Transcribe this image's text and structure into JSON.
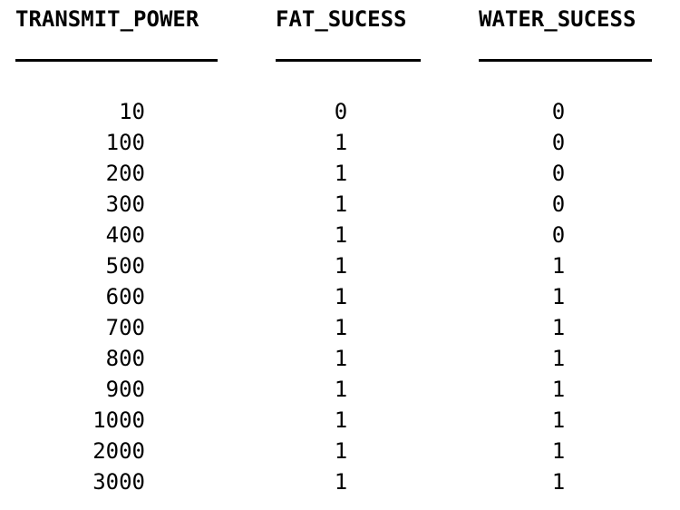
{
  "table": {
    "headers": [
      "TRANSMIT_POWER",
      "FAT_SUCESS",
      "WATER_SUCESS"
    ],
    "rows": [
      [
        "10",
        "0",
        "0"
      ],
      [
        "100",
        "1",
        "0"
      ],
      [
        "200",
        "1",
        "0"
      ],
      [
        "300",
        "1",
        "0"
      ],
      [
        "400",
        "1",
        "0"
      ],
      [
        "500",
        "1",
        "1"
      ],
      [
        "600",
        "1",
        "1"
      ],
      [
        "700",
        "1",
        "1"
      ],
      [
        "800",
        "1",
        "1"
      ],
      [
        "900",
        "1",
        "1"
      ],
      [
        "1000",
        "1",
        "1"
      ],
      [
        "2000",
        "1",
        "1"
      ],
      [
        "3000",
        "1",
        "1"
      ]
    ]
  }
}
